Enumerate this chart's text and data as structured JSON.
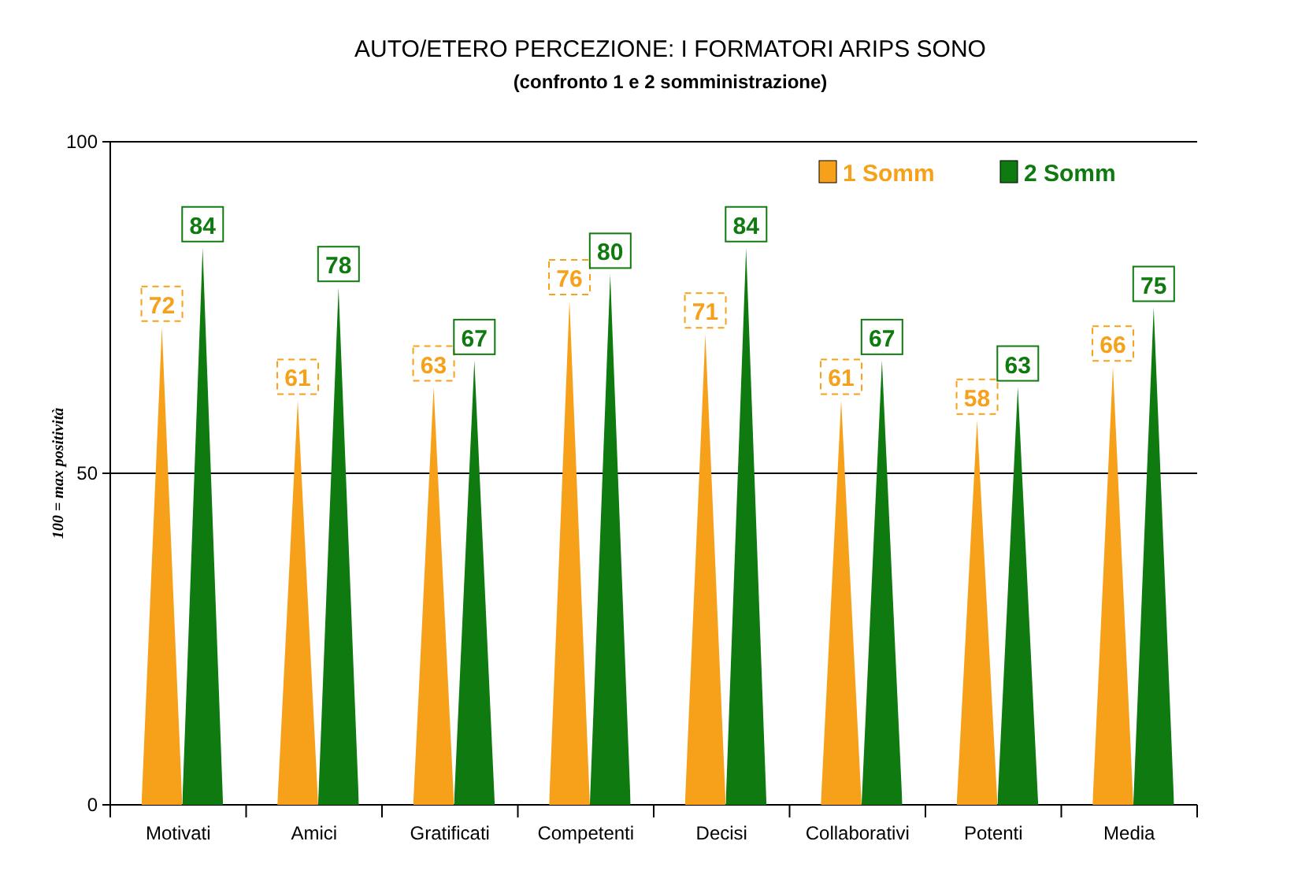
{
  "chart_data": {
    "type": "bar",
    "title": "AUTO/ETERO PERCEZIONE: I FORMATORI ARIPS SONO",
    "subtitle": "(confronto 1 e 2 somministrazione)",
    "ylabel": "100 = max positività",
    "categories": [
      "Motivati",
      "Amici",
      "Gratificati",
      "Competenti",
      "Decisi",
      "Collaborativi",
      "Potenti",
      "Media"
    ],
    "series": [
      {
        "name": "1 Somm",
        "color": "#f7a019",
        "values": [
          72,
          61,
          63,
          76,
          71,
          61,
          58,
          66
        ]
      },
      {
        "name": "2 Somm",
        "color": "#0f7a0f",
        "values": [
          84,
          78,
          67,
          80,
          84,
          67,
          63,
          75
        ]
      }
    ],
    "ylim": [
      0,
      100
    ],
    "yticks": [
      0,
      50,
      100
    ],
    "grid": "y",
    "legend": "top right",
    "data_labels": true
  }
}
